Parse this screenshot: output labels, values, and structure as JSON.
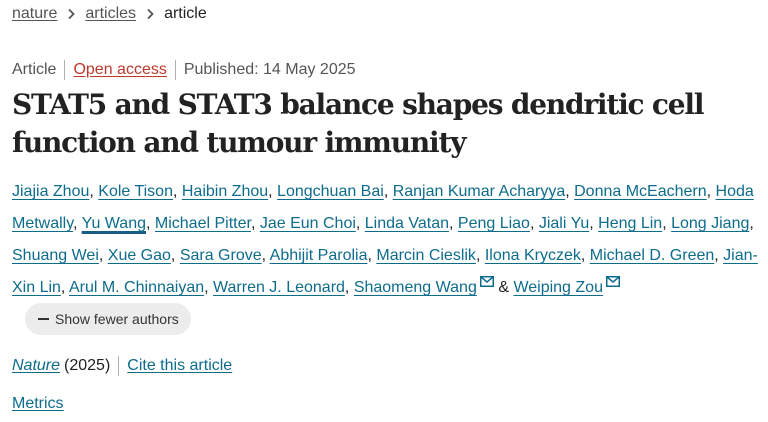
{
  "breadcrumb": {
    "items": [
      {
        "label": "nature"
      },
      {
        "label": "articles"
      }
    ],
    "current": "article"
  },
  "meta": {
    "type": "Article",
    "access": "Open access",
    "published": "Published: 14 May 2025"
  },
  "title": "STAT5 and STAT3 balance shapes dendritic cell function and tumour immunity",
  "authors": [
    "Jiajia Zhou",
    "Kole Tison",
    "Haibin Zhou",
    "Longchuan Bai",
    "Ranjan Kumar Acharyya",
    "Donna McEachern",
    "Hoda Metwally",
    "Yu Wang",
    "Michael Pitter",
    "Jae Eun Choi",
    "Linda Vatan",
    "Peng Liao",
    "Jiali Yu",
    "Heng Lin",
    "Long Jiang",
    "Shuang Wei",
    "Xue Gao",
    "Sara Grove",
    "Abhijit Parolia",
    "Marcin Cieslik",
    "Ilona Kryczek",
    "Michael D. Green",
    "Jian-Xin Lin",
    "Arul M. Chinnaiyan",
    "Warren J. Leonard",
    "Shaomeng Wang",
    "Weiping Zou"
  ],
  "authors_separator": ", ",
  "authors_conjunction": "&",
  "show_fewer_label": "Show fewer authors",
  "journal": {
    "name": "Nature",
    "year": "(2025)",
    "cite_label": "Cite this article"
  },
  "metrics_label": "Metrics",
  "colors": {
    "link": "#0d6c8c",
    "open_access": "#c0392b",
    "text": "#222222"
  },
  "icons": {
    "breadcrumb_separator": "chevron-right-icon",
    "corresponding_author": "mail-icon",
    "collapse": "minus-icon"
  }
}
